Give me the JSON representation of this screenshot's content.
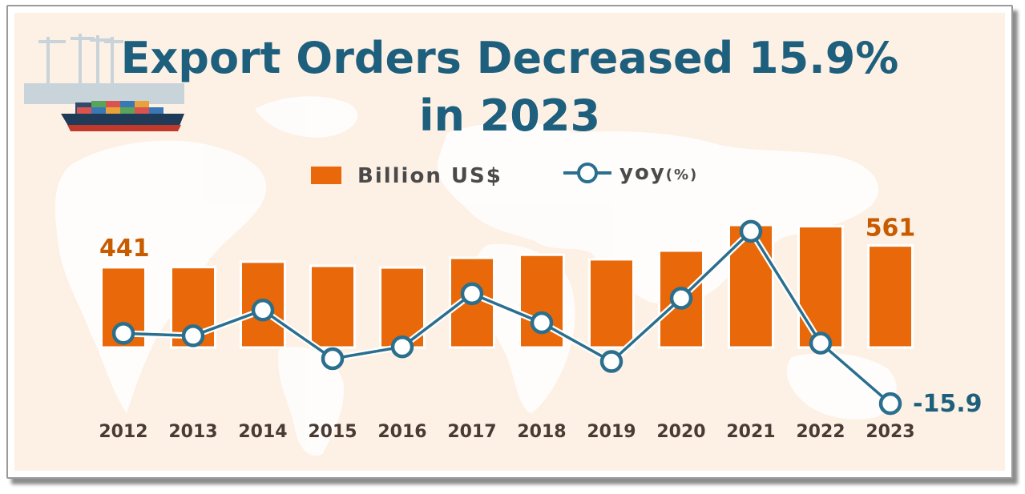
{
  "title_line1": "Export Orders Decreased 15.9%",
  "title_line2": "in 2023",
  "legend": {
    "bar_label": "Billion US$",
    "line_label": "yoy",
    "line_unit": "(%)"
  },
  "colors": {
    "bar": "#e8680a",
    "line": "#2a6f8e",
    "title": "#1d5f7c",
    "bar_label": "#c85a00",
    "background": "#fdf1e6"
  },
  "icons": [
    "map-background",
    "container-ship-illustration"
  ],
  "chart_data": {
    "type": "bar",
    "categories": [
      "2012",
      "2013",
      "2014",
      "2015",
      "2016",
      "2017",
      "2018",
      "2019",
      "2020",
      "2021",
      "2022",
      "2023"
    ],
    "series": [
      {
        "name": "Billion US$",
        "type": "bar",
        "values": [
          441,
          442,
          472,
          449,
          440,
          493,
          510,
          485,
          533,
          674,
          667,
          561
        ]
      },
      {
        "name": "yoy(%)",
        "type": "line",
        "values": [
          1.3,
          0.7,
          7.0,
          -4.9,
          -2.0,
          11.0,
          3.9,
          -5.6,
          9.9,
          26.3,
          -1.1,
          -15.9
        ]
      }
    ],
    "value_labels": {
      "first_bar": "441",
      "last_bar": "561",
      "last_line": "-15.9"
    },
    "title": "Export Orders Decreased 15.9% in 2023",
    "legend_position": "top-center",
    "grid": false
  }
}
